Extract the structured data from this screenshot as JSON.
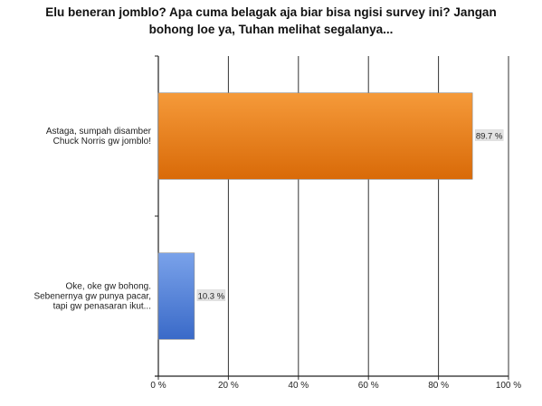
{
  "chart_data": {
    "type": "bar",
    "orientation": "horizontal",
    "title": "Elu beneran jomblo? Apa cuma belagak aja biar bisa ngisi survey ini? Jangan bohong loe ya, Tuhan melihat segalanya...",
    "categories": [
      [
        "Astaga, sumpah disamber",
        "Chuck Norris gw jomblo!"
      ],
      [
        "Oke, oke gw bohong.",
        "Sebenernya gw punya pacar,",
        "tapi gw penasaran ikut..."
      ]
    ],
    "values": [
      89.7,
      10.3
    ],
    "value_labels": [
      "89.7 %",
      "10.3 %"
    ],
    "bar_colors": [
      {
        "light": "#f59a3a",
        "dark": "#d96a08"
      },
      {
        "light": "#7aa2ea",
        "dark": "#3a6ac8"
      }
    ],
    "x_ticks": [
      0,
      20,
      40,
      60,
      80,
      100
    ],
    "x_tick_labels": [
      "0 %",
      "20 %",
      "40 %",
      "60 %",
      "80 %",
      "100 %"
    ],
    "xlim": [
      0,
      100
    ],
    "grid": true,
    "legend": "none"
  }
}
